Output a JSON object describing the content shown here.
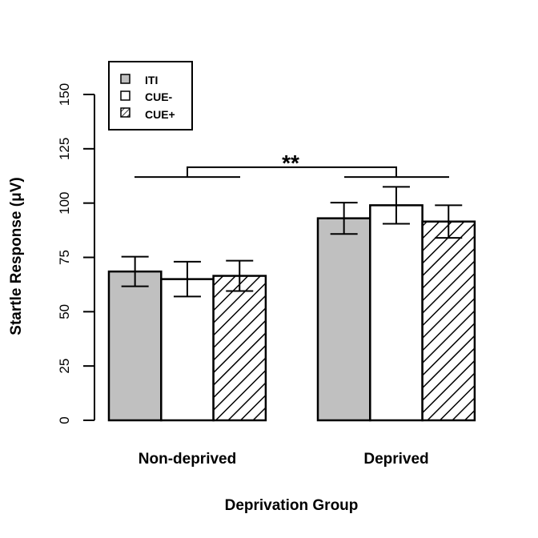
{
  "chart_data": {
    "type": "bar",
    "title": "",
    "xlabel": "Deprivation Group",
    "ylabel": "Startle Response (μV)",
    "ylim": [
      0,
      150
    ],
    "yticks": [
      0,
      25,
      50,
      75,
      100,
      125,
      150
    ],
    "categories": [
      "Non-deprived",
      "Deprived"
    ],
    "series": [
      {
        "name": "ITI",
        "fill": "#c0c0c0",
        "pattern": "solid",
        "values": [
          68.5,
          93.0
        ],
        "error": [
          6.8,
          7.2
        ]
      },
      {
        "name": "CUE-",
        "fill": "#ffffff",
        "pattern": "solid",
        "values": [
          65.0,
          99.0
        ],
        "error": [
          8.0,
          8.5
        ]
      },
      {
        "name": "CUE+",
        "fill": "#ffffff",
        "pattern": "hatched",
        "values": [
          66.5,
          91.5
        ],
        "error": [
          7.0,
          7.5
        ]
      }
    ],
    "legend_position": "top-left",
    "grid": false,
    "annotations": [
      {
        "text": "**",
        "type": "significance-bracket",
        "between": [
          "Non-deprived",
          "Deprived"
        ],
        "level": 116.5,
        "group_level": 112.0
      }
    ]
  }
}
